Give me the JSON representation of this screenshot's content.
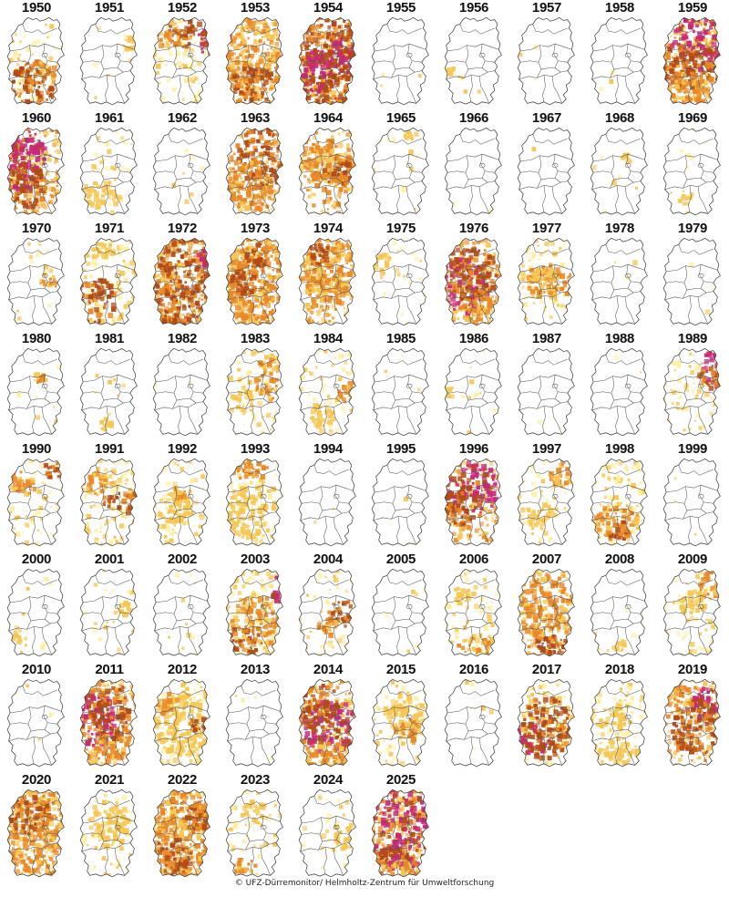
{
  "credit": "© UFZ-Dürremonitor/ Helmholtz-Zentrum für Umweltforschung",
  "legend_colors": {
    "D0": "#ffef9e",
    "D1": "#f6c653",
    "D2": "#e88826",
    "D3": "#b24a16",
    "D4": "#c8287a"
  },
  "maps": [
    {
      "year": "1950",
      "fill": 0.3,
      "hot": [
        [
          0.45,
          0.75,
          0.35,
          0.25,
          "D3"
        ],
        [
          0.55,
          0.65,
          0.25,
          0.15,
          "D2"
        ]
      ]
    },
    {
      "year": "1951",
      "fill": 0.04,
      "hot": [
        [
          0.8,
          0.3,
          0.1,
          0.08,
          "D1"
        ]
      ]
    },
    {
      "year": "1952",
      "fill": 0.4,
      "hot": [
        [
          0.85,
          0.25,
          0.12,
          0.18,
          "D4"
        ],
        [
          0.55,
          0.2,
          0.3,
          0.15,
          "D3"
        ],
        [
          0.3,
          0.2,
          0.2,
          0.15,
          "D2"
        ]
      ]
    },
    {
      "year": "1953",
      "fill": 0.7,
      "hot": [
        [
          0.45,
          0.45,
          0.45,
          0.45,
          "D2"
        ],
        [
          0.5,
          0.75,
          0.35,
          0.2,
          "D3"
        ]
      ]
    },
    {
      "year": "1954",
      "fill": 0.95,
      "hot": [
        [
          0.5,
          0.5,
          0.6,
          0.55,
          "D3"
        ],
        [
          0.35,
          0.6,
          0.25,
          0.25,
          "D4"
        ],
        [
          0.7,
          0.45,
          0.2,
          0.2,
          "D4"
        ]
      ]
    },
    {
      "year": "1955",
      "fill": 0.01,
      "hot": []
    },
    {
      "year": "1956",
      "fill": 0.03,
      "hot": [
        [
          0.15,
          0.6,
          0.08,
          0.06,
          "D1"
        ]
      ]
    },
    {
      "year": "1957",
      "fill": 0.01,
      "hot": []
    },
    {
      "year": "1958",
      "fill": 0.01,
      "hot": []
    },
    {
      "year": "1959",
      "fill": 0.85,
      "hot": [
        [
          0.6,
          0.3,
          0.4,
          0.3,
          "D4"
        ],
        [
          0.45,
          0.55,
          0.5,
          0.25,
          "D3"
        ],
        [
          0.45,
          0.8,
          0.4,
          0.2,
          "D2"
        ]
      ]
    },
    {
      "year": "1960",
      "fill": 0.8,
      "hot": [
        [
          0.3,
          0.35,
          0.35,
          0.35,
          "D4"
        ],
        [
          0.35,
          0.65,
          0.3,
          0.25,
          "D3"
        ],
        [
          0.15,
          0.2,
          0.15,
          0.15,
          "D4"
        ]
      ]
    },
    {
      "year": "1961",
      "fill": 0.15,
      "hot": [
        [
          0.4,
          0.75,
          0.3,
          0.15,
          "D1"
        ]
      ]
    },
    {
      "year": "1962",
      "fill": 0.03,
      "hot": []
    },
    {
      "year": "1963",
      "fill": 0.65,
      "hot": [
        [
          0.6,
          0.35,
          0.35,
          0.35,
          "D3"
        ],
        [
          0.4,
          0.65,
          0.35,
          0.3,
          "D2"
        ]
      ]
    },
    {
      "year": "1964",
      "fill": 0.65,
      "hot": [
        [
          0.6,
          0.45,
          0.35,
          0.3,
          "D2"
        ],
        [
          0.3,
          0.4,
          0.25,
          0.2,
          "D2"
        ],
        [
          0.65,
          0.5,
          0.2,
          0.15,
          "D3"
        ]
      ]
    },
    {
      "year": "1965",
      "fill": 0.05,
      "hot": [
        [
          0.65,
          0.1,
          0.1,
          0.06,
          "D1"
        ]
      ]
    },
    {
      "year": "1966",
      "fill": 0.01,
      "hot": []
    },
    {
      "year": "1967",
      "fill": 0.01,
      "hot": []
    },
    {
      "year": "1968",
      "fill": 0.04,
      "hot": [
        [
          0.6,
          0.35,
          0.08,
          0.06,
          "D1"
        ]
      ]
    },
    {
      "year": "1969",
      "fill": 0.05,
      "hot": [
        [
          0.4,
          0.8,
          0.1,
          0.06,
          "D1"
        ]
      ]
    },
    {
      "year": "1970",
      "fill": 0.08,
      "hot": [
        [
          0.75,
          0.5,
          0.2,
          0.06,
          "D2"
        ]
      ]
    },
    {
      "year": "1971",
      "fill": 0.45,
      "hot": [
        [
          0.3,
          0.7,
          0.3,
          0.25,
          "D3"
        ],
        [
          0.35,
          0.15,
          0.25,
          0.1,
          "D1"
        ]
      ]
    },
    {
      "year": "1972",
      "fill": 1.0,
      "hot": [
        [
          0.5,
          0.5,
          0.7,
          0.7,
          "D3"
        ],
        [
          0.85,
          0.2,
          0.15,
          0.15,
          "D4"
        ]
      ]
    },
    {
      "year": "1973",
      "fill": 0.8,
      "hot": [
        [
          0.5,
          0.5,
          0.5,
          0.5,
          "D2"
        ],
        [
          0.35,
          0.45,
          0.2,
          0.2,
          "D3"
        ],
        [
          0.55,
          0.2,
          0.2,
          0.12,
          "D3"
        ]
      ]
    },
    {
      "year": "1974",
      "fill": 0.75,
      "hot": [
        [
          0.45,
          0.3,
          0.45,
          0.3,
          "D2"
        ],
        [
          0.35,
          0.2,
          0.2,
          0.12,
          "D3"
        ],
        [
          0.5,
          0.6,
          0.3,
          0.2,
          "D2"
        ]
      ]
    },
    {
      "year": "1975",
      "fill": 0.1,
      "hot": [
        [
          0.2,
          0.3,
          0.15,
          0.15,
          "D1"
        ]
      ]
    },
    {
      "year": "1976",
      "fill": 0.8,
      "hot": [
        [
          0.35,
          0.55,
          0.35,
          0.3,
          "D4"
        ],
        [
          0.45,
          0.4,
          0.4,
          0.3,
          "D3"
        ],
        [
          0.6,
          0.8,
          0.3,
          0.15,
          "D2"
        ]
      ]
    },
    {
      "year": "1977",
      "fill": 0.35,
      "hot": [
        [
          0.55,
          0.5,
          0.35,
          0.2,
          "D2"
        ],
        [
          0.45,
          0.45,
          0.2,
          0.12,
          "D1"
        ]
      ]
    },
    {
      "year": "1978",
      "fill": 0.01,
      "hot": []
    },
    {
      "year": "1979",
      "fill": 0.01,
      "hot": []
    },
    {
      "year": "1980",
      "fill": 0.05,
      "hot": [
        [
          0.55,
          0.35,
          0.1,
          0.06,
          "D2"
        ]
      ]
    },
    {
      "year": "1981",
      "fill": 0.05,
      "hot": [
        [
          0.45,
          0.85,
          0.1,
          0.06,
          "D1"
        ]
      ]
    },
    {
      "year": "1982",
      "fill": 0.01,
      "hot": []
    },
    {
      "year": "1983",
      "fill": 0.3,
      "hot": [
        [
          0.7,
          0.35,
          0.2,
          0.25,
          "D2"
        ],
        [
          0.35,
          0.6,
          0.15,
          0.12,
          "D1"
        ]
      ]
    },
    {
      "year": "1984",
      "fill": 0.25,
      "hot": [
        [
          0.8,
          0.5,
          0.2,
          0.12,
          "D2"
        ],
        [
          0.4,
          0.75,
          0.2,
          0.12,
          "D1"
        ]
      ]
    },
    {
      "year": "1985",
      "fill": 0.01,
      "hot": []
    },
    {
      "year": "1986",
      "fill": 0.05,
      "hot": [
        [
          0.15,
          0.5,
          0.08,
          0.06,
          "D1"
        ]
      ]
    },
    {
      "year": "1987",
      "fill": 0.01,
      "hot": []
    },
    {
      "year": "1988",
      "fill": 0.01,
      "hot": []
    },
    {
      "year": "1989",
      "fill": 0.3,
      "hot": [
        [
          0.8,
          0.25,
          0.18,
          0.2,
          "D4"
        ],
        [
          0.75,
          0.35,
          0.15,
          0.12,
          "D3"
        ]
      ]
    },
    {
      "year": "1990",
      "fill": 0.3,
      "hot": [
        [
          0.75,
          0.15,
          0.15,
          0.1,
          "D3"
        ],
        [
          0.3,
          0.3,
          0.2,
          0.15,
          "D2"
        ]
      ]
    },
    {
      "year": "1991",
      "fill": 0.45,
      "hot": [
        [
          0.7,
          0.5,
          0.3,
          0.12,
          "D3"
        ],
        [
          0.35,
          0.3,
          0.25,
          0.12,
          "D2"
        ]
      ]
    },
    {
      "year": "1992",
      "fill": 0.35,
      "hot": [
        [
          0.4,
          0.55,
          0.25,
          0.2,
          "D1"
        ],
        [
          0.45,
          0.4,
          0.1,
          0.08,
          "D2"
        ]
      ]
    },
    {
      "year": "1993",
      "fill": 0.35,
      "hot": [
        [
          0.4,
          0.15,
          0.3,
          0.1,
          "D2"
        ],
        [
          0.4,
          0.6,
          0.3,
          0.3,
          "D1"
        ]
      ]
    },
    {
      "year": "1994",
      "fill": 0.01,
      "hot": []
    },
    {
      "year": "1995",
      "fill": 0.02,
      "hot": []
    },
    {
      "year": "1996",
      "fill": 0.7,
      "hot": [
        [
          0.45,
          0.35,
          0.4,
          0.3,
          "D4"
        ],
        [
          0.3,
          0.55,
          0.25,
          0.2,
          "D3"
        ]
      ]
    },
    {
      "year": "1997",
      "fill": 0.25,
      "hot": [
        [
          0.75,
          0.2,
          0.2,
          0.15,
          "D2"
        ],
        [
          0.4,
          0.65,
          0.2,
          0.15,
          "D1"
        ]
      ]
    },
    {
      "year": "1998",
      "fill": 0.5,
      "hot": [
        [
          0.45,
          0.7,
          0.35,
          0.2,
          "D2"
        ],
        [
          0.5,
          0.8,
          0.2,
          0.1,
          "D3"
        ]
      ]
    },
    {
      "year": "1999",
      "fill": 0.01,
      "hot": []
    },
    {
      "year": "2000",
      "fill": 0.05,
      "hot": [
        [
          0.25,
          0.75,
          0.1,
          0.08,
          "D1"
        ]
      ]
    },
    {
      "year": "2001",
      "fill": 0.1,
      "hot": [
        [
          0.75,
          0.45,
          0.1,
          0.08,
          "D1"
        ]
      ]
    },
    {
      "year": "2002",
      "fill": 0.05,
      "hot": []
    },
    {
      "year": "2003",
      "fill": 0.6,
      "hot": [
        [
          0.85,
          0.25,
          0.12,
          0.15,
          "D4"
        ],
        [
          0.5,
          0.6,
          0.35,
          0.3,
          "D2"
        ],
        [
          0.35,
          0.8,
          0.25,
          0.15,
          "D3"
        ]
      ]
    },
    {
      "year": "2004",
      "fill": 0.25,
      "hot": [
        [
          0.7,
          0.5,
          0.2,
          0.15,
          "D3"
        ],
        [
          0.5,
          0.65,
          0.15,
          0.1,
          "D2"
        ]
      ]
    },
    {
      "year": "2005",
      "fill": 0.03,
      "hot": []
    },
    {
      "year": "2006",
      "fill": 0.25,
      "hot": [
        [
          0.55,
          0.85,
          0.3,
          0.1,
          "D2"
        ],
        [
          0.35,
          0.3,
          0.15,
          0.1,
          "D1"
        ]
      ]
    },
    {
      "year": "2007",
      "fill": 0.75,
      "hot": [
        [
          0.5,
          0.45,
          0.4,
          0.35,
          "D2"
        ],
        [
          0.55,
          0.85,
          0.25,
          0.1,
          "D3"
        ]
      ]
    },
    {
      "year": "2008",
      "fill": 0.05,
      "hot": [
        [
          0.5,
          0.85,
          0.1,
          0.06,
          "D1"
        ]
      ]
    },
    {
      "year": "2009",
      "fill": 0.25,
      "hot": [
        [
          0.75,
          0.2,
          0.15,
          0.15,
          "D2"
        ],
        [
          0.5,
          0.4,
          0.2,
          0.15,
          "D1"
        ]
      ]
    },
    {
      "year": "2010",
      "fill": 0.02,
      "hot": []
    },
    {
      "year": "2011",
      "fill": 0.75,
      "hot": [
        [
          0.3,
          0.45,
          0.3,
          0.3,
          "D4"
        ],
        [
          0.5,
          0.35,
          0.3,
          0.35,
          "D3"
        ],
        [
          0.45,
          0.8,
          0.35,
          0.2,
          "D2"
        ]
      ]
    },
    {
      "year": "2012",
      "fill": 0.55,
      "hot": [
        [
          0.5,
          0.5,
          0.4,
          0.35,
          "D1"
        ],
        [
          0.75,
          0.5,
          0.15,
          0.1,
          "D3"
        ],
        [
          0.3,
          0.3,
          0.15,
          0.12,
          "D2"
        ]
      ]
    },
    {
      "year": "2013",
      "fill": 0.02,
      "hot": []
    },
    {
      "year": "2014",
      "fill": 0.85,
      "hot": [
        [
          0.55,
          0.55,
          0.4,
          0.3,
          "D4"
        ],
        [
          0.35,
          0.3,
          0.3,
          0.25,
          "D3"
        ],
        [
          0.5,
          0.85,
          0.35,
          0.15,
          "D2"
        ]
      ]
    },
    {
      "year": "2015",
      "fill": 0.35,
      "hot": [
        [
          0.55,
          0.4,
          0.3,
          0.2,
          "D1"
        ],
        [
          0.6,
          0.6,
          0.2,
          0.15,
          "D2"
        ]
      ]
    },
    {
      "year": "2016",
      "fill": 0.03,
      "hot": []
    },
    {
      "year": "2017",
      "fill": 0.55,
      "hot": [
        [
          0.3,
          0.65,
          0.25,
          0.2,
          "D4"
        ],
        [
          0.5,
          0.55,
          0.35,
          0.35,
          "D3"
        ]
      ]
    },
    {
      "year": "2018",
      "fill": 0.4,
      "hot": [
        [
          0.45,
          0.8,
          0.35,
          0.15,
          "D1"
        ],
        [
          0.4,
          0.45,
          0.2,
          0.15,
          "D1"
        ]
      ]
    },
    {
      "year": "2019",
      "fill": 0.7,
      "hot": [
        [
          0.75,
          0.3,
          0.25,
          0.2,
          "D4"
        ],
        [
          0.55,
          0.55,
          0.35,
          0.3,
          "D3"
        ],
        [
          0.3,
          0.2,
          0.2,
          0.12,
          "D2"
        ]
      ]
    },
    {
      "year": "2020",
      "fill": 0.9,
      "hot": [
        [
          0.5,
          0.5,
          0.6,
          0.55,
          "D2"
        ],
        [
          0.4,
          0.3,
          0.3,
          0.2,
          "D3"
        ]
      ]
    },
    {
      "year": "2021",
      "fill": 0.3,
      "hot": [
        [
          0.5,
          0.4,
          0.3,
          0.25,
          "D1"
        ]
      ]
    },
    {
      "year": "2022",
      "fill": 0.8,
      "hot": [
        [
          0.5,
          0.5,
          0.5,
          0.5,
          "D2"
        ],
        [
          0.35,
          0.75,
          0.3,
          0.2,
          "D3"
        ],
        [
          0.7,
          0.35,
          0.2,
          0.15,
          "D3"
        ]
      ]
    },
    {
      "year": "2023",
      "fill": 0.2,
      "hot": [
        [
          0.35,
          0.85,
          0.2,
          0.08,
          "D2"
        ],
        [
          0.5,
          0.3,
          0.2,
          0.15,
          "D1"
        ]
      ]
    },
    {
      "year": "2024",
      "fill": 0.15,
      "hot": [
        [
          0.75,
          0.55,
          0.15,
          0.12,
          "D1"
        ]
      ]
    },
    {
      "year": "2025",
      "fill": 1.0,
      "hot": [
        [
          0.5,
          0.4,
          0.6,
          0.5,
          "D4"
        ],
        [
          0.35,
          0.8,
          0.3,
          0.15,
          "D3"
        ],
        [
          0.6,
          0.9,
          0.3,
          0.1,
          "D2"
        ]
      ]
    }
  ]
}
